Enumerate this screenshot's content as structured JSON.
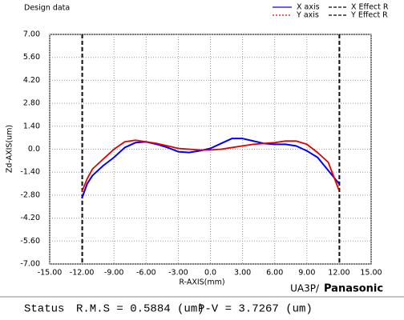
{
  "chart_data": {
    "type": "line",
    "title": "Design data",
    "xlabel": "R-AXIS(mm)",
    "ylabel": "Zd-AXIS(um)",
    "x": [
      -12,
      -11.5,
      -11,
      -10,
      -9,
      -8,
      -7,
      -6,
      -5,
      -4,
      -3,
      -2,
      -1,
      0,
      1,
      2,
      3,
      4,
      5,
      6,
      7,
      8,
      9,
      10,
      11,
      12
    ],
    "series": [
      {
        "name": "X axis",
        "color": "#0000ff",
        "style": "solid",
        "values": [
          -3.0,
          -2.1,
          -1.6,
          -1.0,
          -0.5,
          0.1,
          0.4,
          0.45,
          0.3,
          0.1,
          -0.15,
          -0.2,
          -0.1,
          0.05,
          0.35,
          0.65,
          0.65,
          0.5,
          0.35,
          0.3,
          0.3,
          0.2,
          -0.1,
          -0.5,
          -1.3,
          -2.1
        ]
      },
      {
        "name": "Y axis",
        "color": "#e00000",
        "style": "dotted",
        "values": [
          -2.6,
          -1.8,
          -1.2,
          -0.6,
          0.0,
          0.45,
          0.55,
          0.45,
          0.35,
          0.2,
          0.05,
          0.0,
          -0.05,
          -0.05,
          0.0,
          0.1,
          0.2,
          0.3,
          0.35,
          0.4,
          0.5,
          0.5,
          0.3,
          -0.2,
          -0.8,
          -2.5
        ]
      }
    ],
    "effect_lines": [
      {
        "name": "X Effect R",
        "color": "#000000",
        "x": [
          -12,
          12
        ]
      },
      {
        "name": "Y Effect R",
        "color": "#000000",
        "x": [
          -12,
          12
        ]
      }
    ],
    "xlim": [
      -15,
      15
    ],
    "xticks": [
      {
        "value": -15,
        "label": "-15.00"
      },
      {
        "value": -12,
        "label": "-12.00"
      },
      {
        "value": -9,
        "label": "-9.00"
      },
      {
        "value": -6,
        "label": "-6.00"
      },
      {
        "value": -3,
        "label": "-3.00"
      },
      {
        "value": 0,
        "label": "0.0"
      },
      {
        "value": 3,
        "label": "3.00"
      },
      {
        "value": 6,
        "label": "6.00"
      },
      {
        "value": 9,
        "label": "9.00"
      },
      {
        "value": 12,
        "label": "12.00"
      },
      {
        "value": 15,
        "label": "15.00"
      }
    ],
    "ylim": [
      -7,
      7
    ],
    "yticks": [
      {
        "value": 7,
        "label": "7.00"
      },
      {
        "value": 5.6,
        "label": "5.60"
      },
      {
        "value": 4.2,
        "label": "4.20"
      },
      {
        "value": 2.8,
        "label": "2.80"
      },
      {
        "value": 1.4,
        "label": "1.40"
      },
      {
        "value": 0,
        "label": "0.0"
      },
      {
        "value": -1.4,
        "label": "-1.40"
      },
      {
        "value": -2.8,
        "label": "-2.80"
      },
      {
        "value": -4.2,
        "label": "-4.20"
      },
      {
        "value": -5.6,
        "label": "-5.60"
      },
      {
        "value": -7,
        "label": "-7.00"
      }
    ],
    "grid": true
  },
  "footer": {
    "software": "UA3P/",
    "brand": "Panasonic"
  },
  "status": {
    "label": "Status",
    "rms": "R.M.S = 0.5884 (um)",
    "pv": "P-V = 3.7267 (um)"
  }
}
